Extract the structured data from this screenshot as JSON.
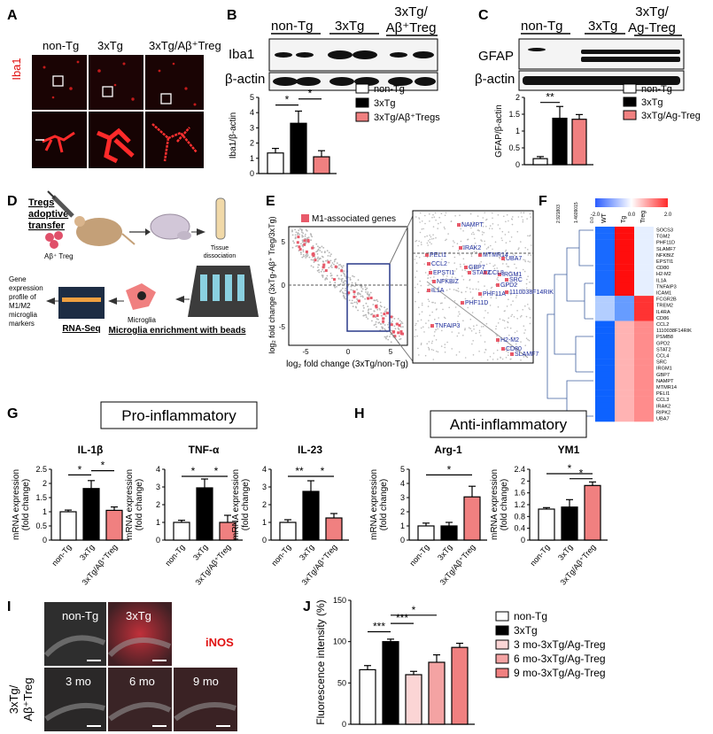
{
  "panels": {
    "A": {
      "letter": "A",
      "stain": "Iba1",
      "groups": [
        "non-Tg",
        "3xTg",
        "3xTg/Aβ⁺Treg"
      ]
    },
    "B": {
      "letter": "B",
      "groups": [
        "non-Tg",
        "3xTg",
        "3xTg/",
        "Aβ⁺Treg"
      ],
      "blot_labels": [
        "Iba1",
        "β-actin"
      ]
    },
    "C": {
      "letter": "C",
      "groups": [
        "non-Tg",
        "3xTg",
        "3xTg/",
        "Ag-Treg"
      ],
      "blot_labels": [
        "GFAP",
        "β-actin"
      ]
    },
    "D": {
      "letter": "D",
      "title_lines": [
        "Tregs",
        "adoptive",
        "transfer"
      ],
      "treg_label": "Aβ⁺ Treg",
      "tissue_label": [
        "Tissue",
        "dissociation"
      ],
      "microglia_label": "Microglia",
      "beads_label": "Microglia enrichment with beads",
      "rnaseq_label": "RNA-Seq",
      "profile_lines": [
        "Gene",
        "expression",
        "profile of",
        "M1/M2",
        "microglia",
        "markers"
      ]
    },
    "E": {
      "letter": "E",
      "legend": "M1-associated genes",
      "xlabel": "log₂ fold change (3xTg/non-Tg)",
      "ylabel": "log₂ fold change (3xTg-Aβ⁺ Treg/3xTg)",
      "x_ticks": [
        "-5",
        "0",
        "5"
      ],
      "y_ticks": [
        "-5",
        "0",
        "5"
      ],
      "genes_left": [
        "NAMPT",
        "IRAK2",
        "MTMR14",
        "UBA7",
        "PELI1",
        "CCL2",
        "EPSTI1",
        "NFKBIZ",
        "IL1A",
        "GBP7",
        "STAT2",
        "CCL8",
        "IRGM1",
        "SRC",
        "GPD2",
        "1110038F14RIK",
        "PHF11A",
        "TNFAIP3",
        "PHF11D",
        "H2-M2",
        "CD80",
        "SLAMF7"
      ]
    },
    "F": {
      "letter": "F",
      "scale_ticks": [
        "-2.0",
        "0.0",
        "2.0"
      ],
      "tree_ticks": [
        "2.921803",
        "1.4609015",
        "0.0"
      ],
      "columns": [
        "WT",
        "Tg",
        "Treg"
      ],
      "genes": [
        "SOCS3",
        "TGM2",
        "PHF11D",
        "SLAMF7",
        "NFKBIZ",
        "EPSTI1",
        "CD80",
        "H2-M2",
        "IL1A",
        "TNFAIP3",
        "ICAM1",
        "FCGR2B",
        "TREM2",
        "IL4RA",
        "CD86",
        "CCL2",
        "1110038F14RIK",
        "PSMB8",
        "GPD2",
        "STAT2",
        "CCL4",
        "SRC",
        "IRGM1",
        "GBP7",
        "NAMPT",
        "MTMR14",
        "PELI1",
        "CCL3",
        "IRAK2",
        "RIPK2",
        "UBA7"
      ]
    },
    "G": {
      "letter": "G",
      "header": "Pro-inflammatory"
    },
    "H": {
      "letter": "H",
      "header": "Anti-inflammatory"
    },
    "I": {
      "letter": "I",
      "marker": "iNOS",
      "top_labels": [
        "non-Tg",
        "3xTg"
      ],
      "bottom_labels": [
        "3 mo",
        "6 mo",
        "9 mo"
      ],
      "row_label": [
        "3xTg/",
        "Aβ⁺Treg"
      ]
    },
    "J": {
      "letter": "J"
    }
  },
  "chart_data": [
    {
      "id": "B-quant",
      "type": "bar",
      "title": "",
      "ylabel": "Iba1/β-actin",
      "ylim": [
        0,
        5
      ],
      "yticks": [
        0,
        1,
        2,
        3,
        4,
        5
      ],
      "categories": [
        "non-Tg",
        "3xTg",
        "3xTg/Aβ⁺Tregs"
      ],
      "values": [
        1.35,
        3.3,
        1.1
      ],
      "errors": [
        0.3,
        0.8,
        0.4
      ],
      "colors": [
        "#ffffff",
        "#000000",
        "#f08080"
      ],
      "legend": [
        "non-Tg",
        "3xTg",
        "3xTg/Aβ⁺Tregs"
      ],
      "sig": [
        {
          "a": 0,
          "b": 1,
          "text": "*",
          "y": 4.5
        },
        {
          "a": 1,
          "b": 2,
          "text": "*",
          "y": 4.9
        }
      ],
      "show_xtick_labels": false
    },
    {
      "id": "C-quant",
      "type": "bar",
      "title": "",
      "ylabel": "GFAP/β-actin",
      "ylim": [
        0,
        2.0
      ],
      "yticks": [
        0.0,
        0.5,
        1.0,
        1.5,
        2.0
      ],
      "categories": [
        "non-Tg",
        "3xTg",
        "3xTg/Ag-Treg"
      ],
      "values": [
        0.18,
        1.38,
        1.35
      ],
      "errors": [
        0.06,
        0.35,
        0.14
      ],
      "colors": [
        "#ffffff",
        "#000000",
        "#f08080"
      ],
      "legend": [
        "non-Tg",
        "3xTg",
        "3xTg/Ag-Treg"
      ],
      "sig": [
        {
          "a": 0,
          "b": 1,
          "text": "**",
          "y": 1.85
        }
      ],
      "show_xtick_labels": false
    },
    {
      "id": "G-IL1",
      "type": "bar",
      "title": "IL-1β",
      "ylabel": "mRNA expression (fold change)",
      "ylim": [
        0,
        2.5
      ],
      "yticks": [
        0.0,
        0.5,
        1.0,
        1.5,
        2.0,
        2.5
      ],
      "categories": [
        "non-Tg",
        "3xTg",
        "3xTg/Aβ⁺Treg"
      ],
      "values": [
        1.0,
        1.82,
        1.05
      ],
      "errors": [
        0.06,
        0.28,
        0.12
      ],
      "colors": [
        "#ffffff",
        "#000000",
        "#f08080"
      ],
      "sig": [
        {
          "a": 0,
          "b": 1,
          "text": "*",
          "y": 2.3
        },
        {
          "a": 1,
          "b": 2,
          "text": "*",
          "y": 2.45
        }
      ],
      "show_xtick_labels": true
    },
    {
      "id": "G-TNF",
      "type": "bar",
      "title": "TNF-α",
      "ylabel": "mRNA expression (fold change)",
      "ylim": [
        0,
        4
      ],
      "yticks": [
        0,
        1,
        2,
        3,
        4
      ],
      "categories": [
        "non-Tg",
        "3xTg",
        "3xTg/Aβ⁺Treg"
      ],
      "values": [
        1.0,
        2.95,
        1.0
      ],
      "errors": [
        0.12,
        0.5,
        0.4
      ],
      "colors": [
        "#ffffff",
        "#000000",
        "#f08080"
      ],
      "sig": [
        {
          "a": 0,
          "b": 1,
          "text": "*",
          "y": 3.6
        },
        {
          "a": 1,
          "b": 2,
          "text": "*",
          "y": 3.6
        }
      ],
      "show_xtick_labels": true
    },
    {
      "id": "G-IL23",
      "type": "bar",
      "title": "IL-23",
      "ylabel": "mRNA expression (fold change)",
      "ylim": [
        0,
        4
      ],
      "yticks": [
        0,
        1,
        2,
        3,
        4
      ],
      "categories": [
        "non-Tg",
        "3xTg",
        "3xTg/Aβ⁺Treg"
      ],
      "values": [
        1.0,
        2.75,
        1.25
      ],
      "errors": [
        0.15,
        0.6,
        0.25
      ],
      "colors": [
        "#ffffff",
        "#000000",
        "#f08080"
      ],
      "sig": [
        {
          "a": 0,
          "b": 1,
          "text": "**",
          "y": 3.6
        },
        {
          "a": 1,
          "b": 2,
          "text": "*",
          "y": 3.6
        }
      ],
      "show_xtick_labels": true
    },
    {
      "id": "H-Arg1",
      "type": "bar",
      "title": "Arg-1",
      "ylabel": "mRNA expression (fold change)",
      "ylim": [
        0,
        5
      ],
      "yticks": [
        0,
        1,
        2,
        3,
        4,
        5
      ],
      "categories": [
        "non-Tg",
        "3xTg",
        "3xTg/Aβ⁺Treg"
      ],
      "values": [
        1.0,
        1.0,
        3.05
      ],
      "errors": [
        0.2,
        0.25,
        0.75
      ],
      "colors": [
        "#ffffff",
        "#000000",
        "#f08080"
      ],
      "sig": [
        {
          "a": 0,
          "b": 2,
          "text": "*",
          "y": 4.6
        }
      ],
      "show_xtick_labels": true
    },
    {
      "id": "H-YM1",
      "type": "bar",
      "title": "YM1",
      "ylabel": "mRNA expression (fold change)",
      "ylim": [
        0,
        2.4
      ],
      "yticks": [
        0.0,
        0.4,
        0.8,
        1.2,
        1.6,
        2.0,
        2.4
      ],
      "categories": [
        "non-Tg",
        "3xTg",
        "3xTg/Aβ⁺Treg"
      ],
      "values": [
        1.05,
        1.12,
        1.85
      ],
      "errors": [
        0.05,
        0.25,
        0.12
      ],
      "colors": [
        "#ffffff",
        "#000000",
        "#f08080"
      ],
      "sig": [
        {
          "a": 0,
          "b": 2,
          "text": "*",
          "y": 2.25
        },
        {
          "a": 1,
          "b": 2,
          "text": "*",
          "y": 2.08
        }
      ],
      "show_xtick_labels": true
    },
    {
      "id": "J-iNOS",
      "type": "bar",
      "title": "",
      "ylabel": "Fluorescence intensity (%)",
      "ylim": [
        0,
        150
      ],
      "yticks": [
        0,
        50,
        100,
        150
      ],
      "categories": [
        "non-Tg",
        "3xTg",
        "3 mo-3xTg/Ag-Treg",
        "6 mo-3xTg/Ag-Treg",
        "9 mo-3xTg/Ag-Treg"
      ],
      "values": [
        66,
        100,
        60,
        75,
        93
      ],
      "errors": [
        5,
        3,
        4,
        9,
        5
      ],
      "colors": [
        "#ffffff",
        "#000000",
        "#fbd5d5",
        "#f4a3a3",
        "#f08080"
      ],
      "legend": [
        "non-Tg",
        "3xTg",
        "3 mo-3xTg/Ag-Treg",
        "6 mo-3xTg/Ag-Treg",
        "9 mo-3xTg/Ag-Treg"
      ],
      "sig": [
        {
          "a": 0,
          "b": 1,
          "text": "***",
          "y": 112
        },
        {
          "a": 1,
          "b": 2,
          "text": "***",
          "y": 122
        },
        {
          "a": 1,
          "b": 3,
          "text": "*",
          "y": 132
        }
      ],
      "show_xtick_labels": false
    }
  ]
}
